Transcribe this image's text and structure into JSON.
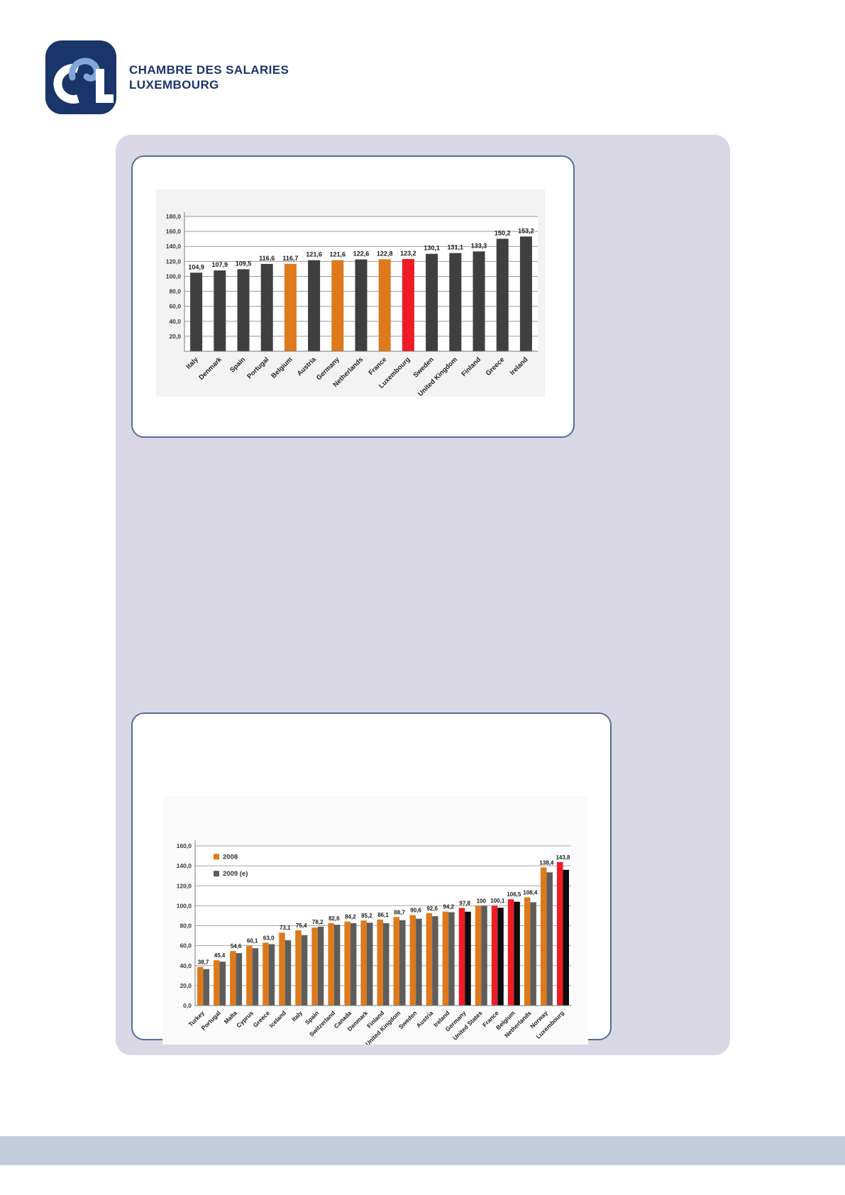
{
  "page": {
    "background": "#ffffff",
    "panel_color": "#d9d8e4",
    "card_border_color": "#5a6ba1",
    "footer_color": "#c3cdda"
  },
  "logo": {
    "org_line1": "CHAMBRE DES SALARIES",
    "org_line2": "LUXEMBOURG",
    "square_color": "#1a3569",
    "c_color": "#ffffff",
    "s_color": "#7fa8d9",
    "l_color": "#ffffff",
    "text_color": "#1a3569"
  },
  "chart_data": [
    {
      "id": "eu15-index-chart",
      "type": "bar",
      "title": "",
      "xlabel": "",
      "ylabel": "",
      "categories": [
        "Italy",
        "Denmark",
        "Spain",
        "Portugal",
        "Belgium",
        "Austria",
        "Germany",
        "Netherlands",
        "France",
        "Luxembourg",
        "Sweden",
        "United Kingdom",
        "Finland",
        "Greece",
        "Ireland"
      ],
      "values": [
        104.9,
        107.9,
        109.5,
        116.6,
        116.7,
        121.6,
        121.6,
        122.6,
        122.8,
        123.2,
        130.1,
        131.1,
        133.3,
        150.2,
        153.2
      ],
      "value_labels": [
        "104,9",
        "107,9",
        "109,5",
        "116,6",
        "116,7",
        "121,6",
        "121,6",
        "122,6",
        "122,8",
        "123,2",
        "130,1",
        "131,1",
        "133,3",
        "150,2",
        "153,2"
      ],
      "bar_roles": [
        "default",
        "default",
        "default",
        "default",
        "neighbor",
        "default",
        "neighbor",
        "default",
        "neighbor",
        "luxembourg",
        "default",
        "default",
        "default",
        "default",
        "default"
      ],
      "colors": {
        "default": "#3f3f3f",
        "neighbor": "#dd7a1c",
        "luxembourg": "#ee1c25"
      },
      "ylim": [
        0,
        180
      ],
      "ytick_step": 20,
      "ytick_values": [
        180,
        160,
        140,
        120,
        100,
        80,
        60,
        40,
        20
      ],
      "ytick_labels": [
        "180,0",
        "160,0",
        "140,0",
        "120,0",
        "100,0",
        "80,0",
        "60,0",
        "40,0",
        "20,0"
      ],
      "grid": true,
      "legend_position": "none"
    },
    {
      "id": "productivity-2008-2009-chart",
      "type": "bar",
      "title": "",
      "xlabel": "",
      "ylabel": "",
      "categories": [
        "Turkey",
        "Portugal",
        "Malta",
        "Cyprus",
        "Greece",
        "Iceland",
        "Italy",
        "Spain",
        "Switzerland",
        "Canada",
        "Denmark",
        "Finland",
        "United Kingdom",
        "Sweden",
        "Austria",
        "Ireland",
        "Germany",
        "United States",
        "France",
        "Belgium",
        "Netherlands",
        "Norway",
        "Luxembourg"
      ],
      "series": [
        {
          "name": "2008",
          "values": [
            38.7,
            45.4,
            54.6,
            60.1,
            63.0,
            73.1,
            75.4,
            78.2,
            82.6,
            84.2,
            85.2,
            86.1,
            88.7,
            90.6,
            92.6,
            94.2,
            97.8,
            100,
            100.1,
            106.5,
            108.4,
            138.4,
            143.8
          ],
          "labels": [
            "38,7",
            "45,4",
            "54,6",
            "60,1",
            "63,0",
            "73,1",
            "75,4",
            "78,2",
            "82,6",
            "84,2",
            "85,2",
            "86,1",
            "88,7",
            "90,6",
            "92,6",
            "94,2",
            "97,8",
            "100",
            "100,1",
            "106,5",
            "108,4",
            "138,4",
            "143,8"
          ]
        },
        {
          "name": "2009 (e)",
          "values": [
            36.5,
            44.0,
            52.5,
            57.5,
            61.5,
            65.5,
            70.5,
            79.0,
            81.0,
            82.5,
            83.0,
            82.5,
            85.5,
            87.0,
            89.5,
            93.5,
            94.0,
            100,
            98.0,
            104.0,
            103.5,
            133.5,
            136.0
          ],
          "estimated": true
        }
      ],
      "legend": [
        "2008",
        "2009 (e)"
      ],
      "legend_position": "top-left-inside",
      "highlight_countries": [
        "Germany",
        "France",
        "Belgium",
        "Luxembourg"
      ],
      "colors": {
        "s2008_default": "#dd7a1c",
        "s2009_default": "#5d5d5d",
        "s2008_highlight": "#ee1c25",
        "s2009_highlight": "#0d0d0d"
      },
      "ylim": [
        0,
        160
      ],
      "ytick_step": 20,
      "ytick_values": [
        160,
        140,
        120,
        100,
        80,
        60,
        40,
        20,
        0
      ],
      "ytick_labels": [
        "160,0",
        "140,0",
        "120,0",
        "100,0",
        "80,0",
        "60,0",
        "40,0",
        "20,0",
        "0,0"
      ],
      "grid": true
    }
  ]
}
